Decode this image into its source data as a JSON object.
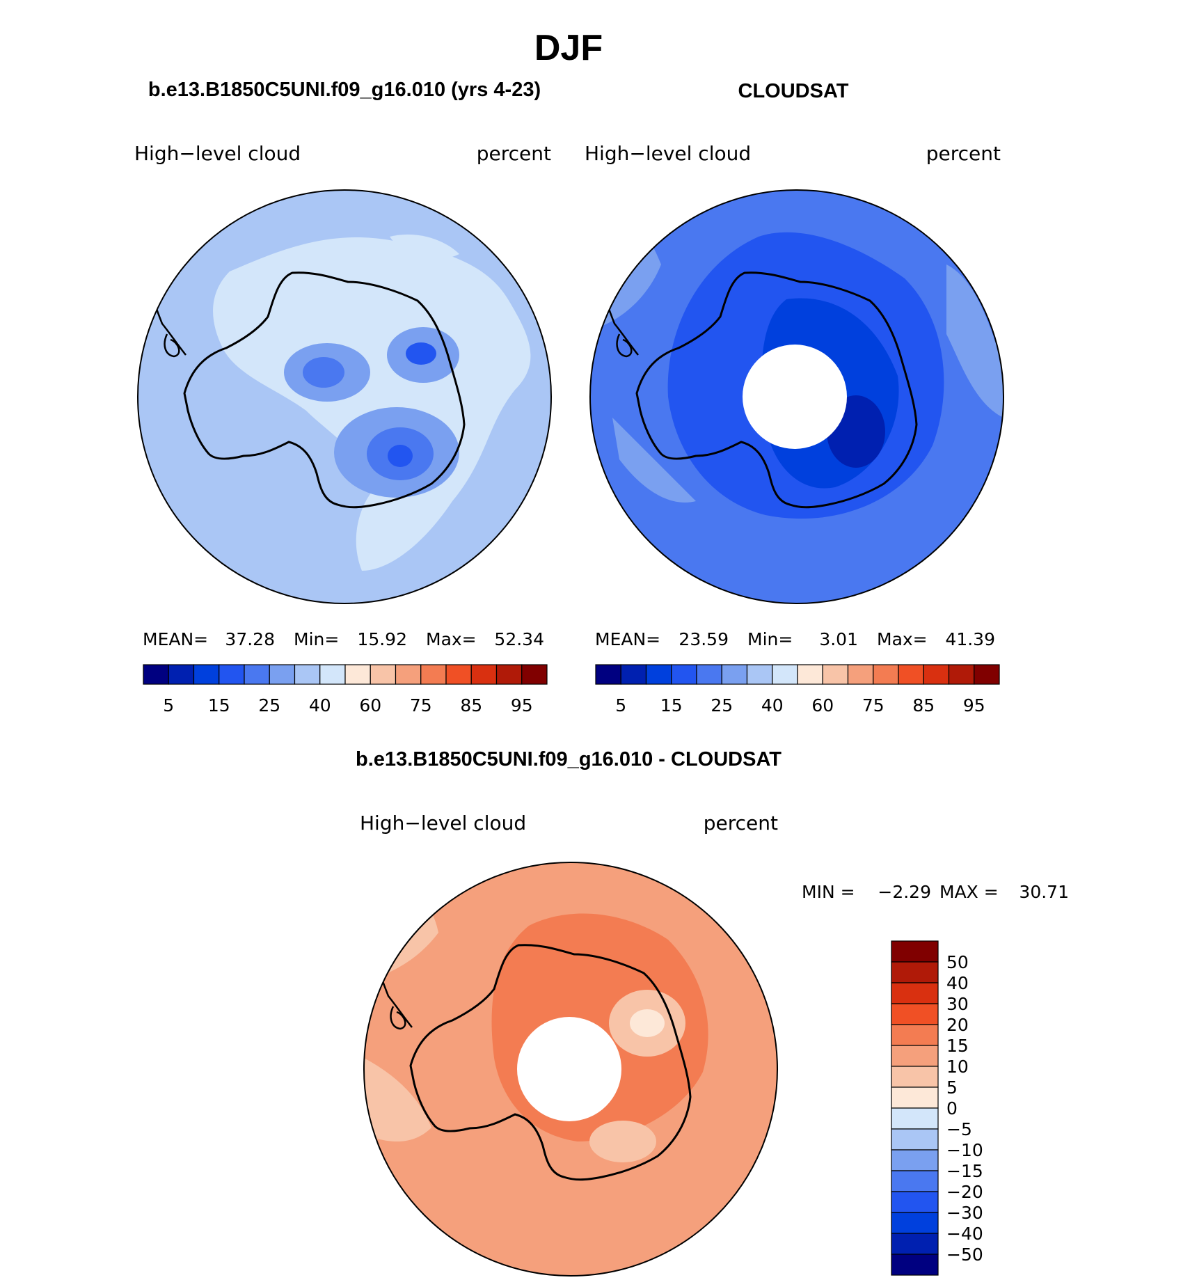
{
  "figure_title": "DJF",
  "panels": [
    {
      "title": "b.e13.B1850C5UNI.f09_g16.010 (yrs 4-23)",
      "variable": "High−level cloud",
      "units": "percent",
      "stats": {
        "mean_label": "MEAN=",
        "mean": "37.28",
        "min_label": "Min=",
        "min": "15.92",
        "max_label": "Max=",
        "max": "52.34"
      }
    },
    {
      "title": "CLOUDSAT",
      "variable": "High−level cloud",
      "units": "percent",
      "stats": {
        "mean_label": "MEAN=",
        "mean": "23.59",
        "min_label": "Min=",
        "min": "3.01",
        "max_label": "Max=",
        "max": "41.39"
      }
    },
    {
      "title": "b.e13.B1850C5UNI.f09_g16.010 - CLOUDSAT",
      "variable": "High−level cloud",
      "units": "percent",
      "stats": {
        "min_label": "MIN =",
        "min": "−2.29",
        "max_label": "MAX =",
        "max": "30.71"
      }
    }
  ],
  "abs_colorbar": {
    "colors": [
      "#000080",
      "#0020b0",
      "#0040dd",
      "#2255f0",
      "#4a78f0",
      "#7aa0f0",
      "#aac6f5",
      "#d3e6fa",
      "#fde8d8",
      "#f8c4a8",
      "#f5a07c",
      "#f37c52",
      "#f05025",
      "#d93010",
      "#b01a08",
      "#800000"
    ],
    "labels": [
      "5",
      "15",
      "25",
      "40",
      "60",
      "75",
      "85",
      "95"
    ]
  },
  "diff_colorbar": {
    "colors": [
      "#800000",
      "#b01a08",
      "#d93010",
      "#f05025",
      "#f37c52",
      "#f5a07c",
      "#f8c4a8",
      "#fde8d8",
      "#d3e6fa",
      "#aac6f5",
      "#7aa0f0",
      "#4a78f0",
      "#2255f0",
      "#0040dd",
      "#0020b0",
      "#000080"
    ],
    "labels": [
      "50",
      "40",
      "30",
      "20",
      "15",
      "10",
      "5",
      "0",
      "−5",
      "−10",
      "−15",
      "−20",
      "−30",
      "−40",
      "−50"
    ]
  },
  "map_colors": {
    "model_background": "#aac6f5",
    "cloudsat_background": "#4a78f0",
    "diff_background": "#f5a07c",
    "coastline": "#000000",
    "missing": "#ffffff"
  }
}
